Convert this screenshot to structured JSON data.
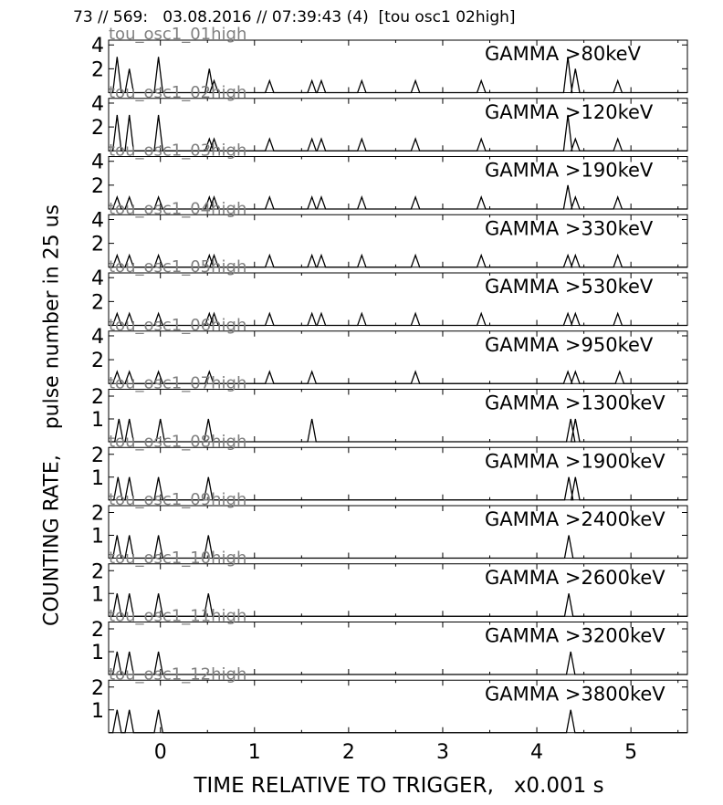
{
  "header": "73 // 569:   03.08.2016 // 07:39:43 (4)  [tou osc1 02high]",
  "chart_data": {
    "type": "line",
    "xlabel": "TIME RELATIVE TO TRIGGER,   x0.001 s",
    "ylabel": "COUNTING RATE,    pulse number in 25 us",
    "xlim": [
      -0.55,
      5.6
    ],
    "xticks": [
      0,
      1,
      2,
      3,
      4,
      5
    ],
    "panels": [
      {
        "label": "GAMMA >80keV",
        "channel": "tou_osc1_01high",
        "ylim": [
          0,
          4.4
        ],
        "yticks": [
          2,
          4
        ],
        "points": [
          [
            -0.46,
            3
          ],
          [
            -0.33,
            2
          ],
          [
            -0.02,
            3
          ],
          [
            0.52,
            2
          ],
          [
            0.57,
            1
          ],
          [
            1.16,
            1
          ],
          [
            1.61,
            1
          ],
          [
            1.71,
            1
          ],
          [
            2.14,
            1
          ],
          [
            2.71,
            1
          ],
          [
            3.41,
            1
          ],
          [
            4.33,
            3
          ],
          [
            4.41,
            2
          ],
          [
            4.86,
            1
          ]
        ]
      },
      {
        "label": "GAMMA >120keV",
        "channel": "tou_osc1_02high",
        "ylim": [
          0,
          4.4
        ],
        "yticks": [
          2,
          4
        ],
        "points": [
          [
            -0.46,
            3
          ],
          [
            -0.33,
            3
          ],
          [
            -0.02,
            3
          ],
          [
            0.52,
            1
          ],
          [
            0.57,
            1
          ],
          [
            1.16,
            1
          ],
          [
            1.61,
            1
          ],
          [
            1.71,
            1
          ],
          [
            2.14,
            1
          ],
          [
            2.71,
            1
          ],
          [
            3.41,
            1
          ],
          [
            4.33,
            3
          ],
          [
            4.41,
            1
          ],
          [
            4.86,
            1
          ]
        ]
      },
      {
        "label": "GAMMA >190keV",
        "channel": "tou_osc1_03high",
        "ylim": [
          0,
          4.4
        ],
        "yticks": [
          2,
          4
        ],
        "points": [
          [
            -0.46,
            1
          ],
          [
            -0.33,
            1
          ],
          [
            -0.02,
            1
          ],
          [
            0.52,
            1
          ],
          [
            0.57,
            1
          ],
          [
            1.16,
            1
          ],
          [
            1.61,
            1
          ],
          [
            1.71,
            1
          ],
          [
            2.14,
            1
          ],
          [
            2.71,
            1
          ],
          [
            3.41,
            1
          ],
          [
            4.33,
            2
          ],
          [
            4.41,
            1
          ],
          [
            4.86,
            1
          ]
        ]
      },
      {
        "label": "GAMMA >330keV",
        "channel": "tou_osc1_04high",
        "ylim": [
          0,
          4.4
        ],
        "yticks": [
          2,
          4
        ],
        "points": [
          [
            -0.46,
            1
          ],
          [
            -0.33,
            1
          ],
          [
            -0.02,
            1
          ],
          [
            0.52,
            1
          ],
          [
            0.57,
            1
          ],
          [
            1.16,
            1
          ],
          [
            1.61,
            1
          ],
          [
            1.71,
            1
          ],
          [
            2.14,
            1
          ],
          [
            2.71,
            1
          ],
          [
            3.41,
            1
          ],
          [
            4.33,
            1
          ],
          [
            4.41,
            1
          ],
          [
            4.86,
            1
          ]
        ]
      },
      {
        "label": "GAMMA >530keV",
        "channel": "tou_osc1_05high",
        "ylim": [
          0,
          4.4
        ],
        "yticks": [
          2,
          4
        ],
        "points": [
          [
            -0.46,
            1
          ],
          [
            -0.33,
            1
          ],
          [
            -0.02,
            1
          ],
          [
            0.52,
            1
          ],
          [
            0.57,
            1
          ],
          [
            1.16,
            1
          ],
          [
            1.61,
            1
          ],
          [
            1.71,
            1
          ],
          [
            2.14,
            1
          ],
          [
            2.71,
            1
          ],
          [
            3.41,
            1
          ],
          [
            4.33,
            1
          ],
          [
            4.41,
            1
          ],
          [
            4.86,
            1
          ]
        ]
      },
      {
        "label": "GAMMA >950keV",
        "channel": "tou_osc1_06high",
        "ylim": [
          0,
          4.4
        ],
        "yticks": [
          2,
          4
        ],
        "points": [
          [
            -0.46,
            1
          ],
          [
            -0.33,
            1
          ],
          [
            -0.02,
            1
          ],
          [
            0.52,
            1
          ],
          [
            1.16,
            1
          ],
          [
            1.61,
            1
          ],
          [
            2.71,
            1
          ],
          [
            4.33,
            1
          ],
          [
            4.41,
            1
          ],
          [
            4.88,
            1
          ]
        ]
      },
      {
        "label": "GAMMA >1300keV",
        "channel": "tou_osc1_07high",
        "ylim": [
          0,
          2.3
        ],
        "yticks": [
          1,
          2
        ],
        "points": [
          [
            -0.44,
            1
          ],
          [
            -0.33,
            1
          ],
          [
            0.0,
            1
          ],
          [
            0.51,
            1
          ],
          [
            1.61,
            1
          ],
          [
            4.36,
            1
          ],
          [
            4.41,
            1
          ]
        ]
      },
      {
        "label": "GAMMA >1900keV",
        "channel": "tou_osc1_08high",
        "ylim": [
          0,
          2.3
        ],
        "yticks": [
          1,
          2
        ],
        "points": [
          [
            -0.45,
            1
          ],
          [
            -0.33,
            1
          ],
          [
            -0.02,
            1
          ],
          [
            0.51,
            1
          ],
          [
            4.34,
            1
          ],
          [
            4.41,
            1
          ]
        ]
      },
      {
        "label": "GAMMA >2400keV",
        "channel": "tou_osc1_09high",
        "ylim": [
          0,
          2.3
        ],
        "yticks": [
          1,
          2
        ],
        "points": [
          [
            -0.46,
            1
          ],
          [
            -0.33,
            1
          ],
          [
            -0.02,
            1
          ],
          [
            0.51,
            1
          ],
          [
            4.34,
            1
          ]
        ]
      },
      {
        "label": "GAMMA >2600keV",
        "channel": "tou_osc1_10high",
        "ylim": [
          0,
          2.3
        ],
        "yticks": [
          1,
          2
        ],
        "points": [
          [
            -0.46,
            1
          ],
          [
            -0.33,
            1
          ],
          [
            -0.02,
            1
          ],
          [
            0.51,
            1
          ],
          [
            4.34,
            1
          ]
        ]
      },
      {
        "label": "GAMMA >3200keV",
        "channel": "tou_osc1_11high",
        "ylim": [
          0,
          2.3
        ],
        "yticks": [
          1,
          2
        ],
        "points": [
          [
            -0.46,
            1
          ],
          [
            -0.33,
            1
          ],
          [
            -0.02,
            1
          ],
          [
            4.36,
            1
          ]
        ]
      },
      {
        "label": "GAMMA >3800keV",
        "channel": "tou_osc1_12high",
        "ylim": [
          0,
          2.3
        ],
        "yticks": [
          1,
          2
        ],
        "points": [
          [
            -0.46,
            1
          ],
          [
            -0.33,
            1
          ],
          [
            -0.02,
            1
          ],
          [
            4.36,
            1
          ]
        ]
      }
    ],
    "line_color": "#000000",
    "channel_label_color": "#808080",
    "grid": false
  }
}
